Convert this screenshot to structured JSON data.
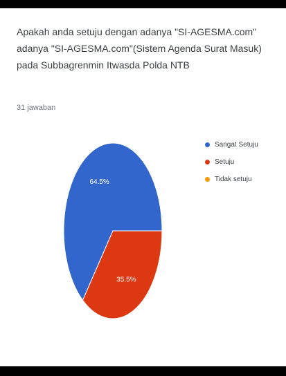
{
  "question": {
    "line1": "Apakah anda setuju dengan adanya \"SI-AGESMA.com\"",
    "line2": "adanya \"SI-AGESMA.com\"(Sistem Agenda Surat Masuk)",
    "line3": "pada Subbagrenmin Itwasda Polda NTB",
    "responses": "31 jawaban"
  },
  "chart_data": {
    "type": "pie",
    "categories": [
      "Sangat Setuju",
      "Setuju",
      "Tidak setuju"
    ],
    "values": [
      64.5,
      35.5,
      0
    ],
    "data_labels": [
      "64.5%",
      "35.5%",
      ""
    ],
    "legend_position": "right",
    "colors": [
      "#3366cc",
      "#dc3912",
      "#ff9900"
    ]
  }
}
